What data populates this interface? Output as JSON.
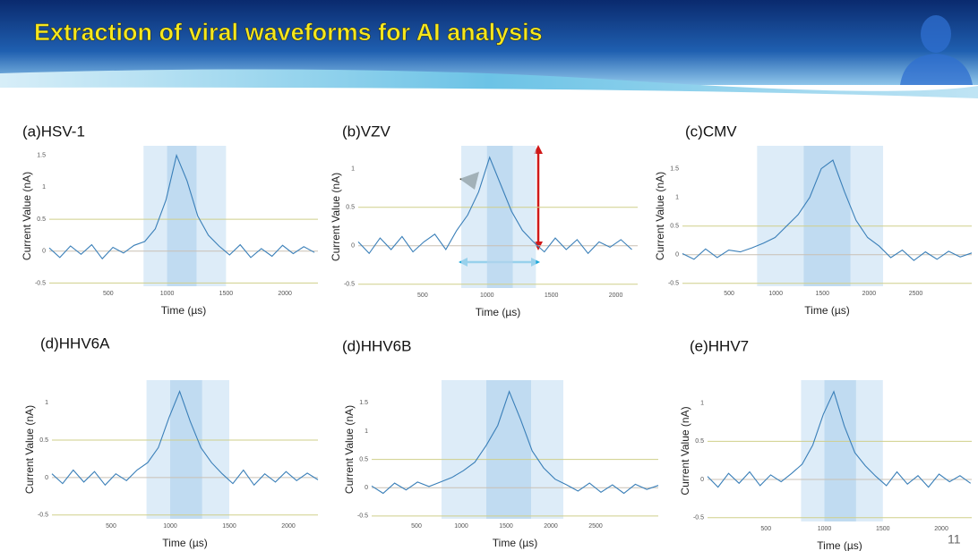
{
  "slide_title": "Extraction of viral waveforms for AI analysis",
  "page_number": "11",
  "chart_data": [
    {
      "type": "line",
      "title": "(a)HSV-1",
      "x_label": "Time (µs)",
      "y_label": "Current Value (nA)",
      "xlim": [
        0,
        2280
      ],
      "xticks": [
        500,
        1000,
        1500,
        2000
      ],
      "ylim": [
        -0.55,
        1.65
      ],
      "yticks": [
        -0.5,
        0,
        0.5,
        1,
        1.5
      ],
      "reference_lines": [
        -0.5,
        0,
        0.5
      ],
      "highlight_outer": [
        800,
        1500
      ],
      "highlight_inner": [
        1000,
        1250
      ],
      "color": "#3a7fb8",
      "x": [
        0,
        90,
        180,
        270,
        360,
        450,
        540,
        630,
        720,
        810,
        900,
        990,
        1080,
        1170,
        1260,
        1350,
        1440,
        1530,
        1620,
        1710,
        1800,
        1890,
        1980,
        2070,
        2160,
        2250
      ],
      "values": [
        0.05,
        -0.1,
        0.08,
        -0.05,
        0.1,
        -0.12,
        0.06,
        -0.03,
        0.09,
        0.15,
        0.35,
        0.8,
        1.5,
        1.1,
        0.55,
        0.25,
        0.08,
        -0.06,
        0.1,
        -0.1,
        0.04,
        -0.08,
        0.09,
        -0.04,
        0.07,
        -0.02
      ]
    },
    {
      "type": "line",
      "title": "(b)VZV",
      "x_label": "Time (µs)",
      "y_label": "Current Value (nA)",
      "xlim": [
        0,
        2170
      ],
      "xticks": [
        500,
        1000,
        1500,
        2000
      ],
      "ylim": [
        -0.55,
        1.3
      ],
      "yticks": [
        -0.5,
        0,
        0.5,
        1
      ],
      "reference_lines": [
        -0.5,
        0,
        0.5
      ],
      "highlight_outer": [
        800,
        1380
      ],
      "highlight_inner": [
        1000,
        1200
      ],
      "color": "#3a7fb8",
      "x": [
        0,
        85,
        170,
        255,
        340,
        425,
        510,
        595,
        680,
        765,
        850,
        935,
        1020,
        1105,
        1190,
        1275,
        1360,
        1445,
        1530,
        1615,
        1700,
        1785,
        1870,
        1955,
        2040,
        2125
      ],
      "values": [
        0.05,
        -0.1,
        0.1,
        -0.05,
        0.12,
        -0.08,
        0.05,
        0.15,
        -0.05,
        0.2,
        0.4,
        0.7,
        1.15,
        0.8,
        0.45,
        0.2,
        0.05,
        -0.08,
        0.1,
        -0.05,
        0.08,
        -0.1,
        0.05,
        -0.02,
        0.08,
        -0.05
      ]
    },
    {
      "type": "line",
      "title": "(c)CMV",
      "x_label": "Time (µs)",
      "y_label": "Current Value (nA)",
      "xlim": [
        0,
        3100
      ],
      "xticks": [
        500,
        1000,
        1500,
        2000,
        2500
      ],
      "ylim": [
        -0.55,
        1.9
      ],
      "yticks": [
        -0.5,
        0,
        0.5,
        1,
        1.5
      ],
      "reference_lines": [
        -0.5,
        0,
        0.5
      ],
      "highlight_outer": [
        800,
        2150
      ],
      "highlight_inner": [
        1300,
        1800
      ],
      "color": "#3a7fb8",
      "x": [
        0,
        124,
        248,
        372,
        496,
        620,
        744,
        868,
        992,
        1116,
        1240,
        1364,
        1488,
        1612,
        1736,
        1860,
        1984,
        2108,
        2232,
        2356,
        2480,
        2604,
        2728,
        2852,
        2976,
        3100
      ],
      "values": [
        0.02,
        -0.08,
        0.1,
        -0.05,
        0.08,
        0.05,
        0.12,
        0.2,
        0.3,
        0.5,
        0.7,
        1.0,
        1.5,
        1.65,
        1.1,
        0.6,
        0.3,
        0.15,
        -0.05,
        0.08,
        -0.1,
        0.05,
        -0.08,
        0.06,
        -0.04,
        0.03
      ]
    },
    {
      "type": "line",
      "title": "(d)HHV6A",
      "x_label": "Time (µs)",
      "y_label": "Current Value (nA)",
      "xlim": [
        0,
        2250
      ],
      "xticks": [
        500,
        1000,
        1500,
        2000
      ],
      "ylim": [
        -0.55,
        1.3
      ],
      "yticks": [
        -0.5,
        0,
        0.5,
        1
      ],
      "reference_lines": [
        -0.5,
        0,
        0.5
      ],
      "highlight_outer": [
        800,
        1500
      ],
      "highlight_inner": [
        1000,
        1270
      ],
      "color": "#3a7fb8",
      "x": [
        0,
        90,
        180,
        270,
        360,
        450,
        540,
        630,
        720,
        810,
        900,
        990,
        1080,
        1170,
        1260,
        1350,
        1440,
        1530,
        1620,
        1710,
        1800,
        1890,
        1980,
        2070,
        2160,
        2250
      ],
      "values": [
        0.05,
        -0.08,
        0.1,
        -0.06,
        0.08,
        -0.1,
        0.05,
        -0.04,
        0.1,
        0.2,
        0.4,
        0.8,
        1.15,
        0.75,
        0.4,
        0.2,
        0.05,
        -0.08,
        0.1,
        -0.1,
        0.05,
        -0.06,
        0.08,
        -0.04,
        0.06,
        -0.03
      ]
    },
    {
      "type": "line",
      "title": "(d)HHV6B",
      "x_label": "Time (µs)",
      "y_label": "Current Value (nA)",
      "xlim": [
        0,
        3200
      ],
      "xticks": [
        500,
        1000,
        1500,
        2000,
        2500
      ],
      "ylim": [
        -0.55,
        1.9
      ],
      "yticks": [
        -0.5,
        0,
        0.5,
        1,
        1.5
      ],
      "reference_lines": [
        -0.5,
        0,
        0.5
      ],
      "highlight_outer": [
        780,
        2140
      ],
      "highlight_inner": [
        1280,
        1780
      ],
      "color": "#3a7fb8",
      "x": [
        0,
        128,
        256,
        384,
        512,
        640,
        768,
        896,
        1024,
        1152,
        1280,
        1408,
        1536,
        1664,
        1792,
        1920,
        2048,
        2176,
        2304,
        2432,
        2560,
        2688,
        2816,
        2944,
        3072,
        3200
      ],
      "values": [
        0.03,
        -0.1,
        0.08,
        -0.04,
        0.1,
        0.02,
        0.1,
        0.18,
        0.3,
        0.45,
        0.75,
        1.1,
        1.7,
        1.2,
        0.65,
        0.35,
        0.15,
        0.05,
        -0.06,
        0.08,
        -0.08,
        0.05,
        -0.1,
        0.06,
        -0.03,
        0.04
      ]
    },
    {
      "type": "line",
      "title": "(e)HHV7",
      "x_label": "Time (µs)",
      "y_label": "Current Value (nA)",
      "xlim": [
        0,
        2260
      ],
      "xticks": [
        500,
        1000,
        1500,
        2000
      ],
      "ylim": [
        -0.55,
        1.3
      ],
      "yticks": [
        -0.5,
        0,
        0.5,
        1
      ],
      "reference_lines": [
        -0.5,
        0,
        0.5
      ],
      "highlight_outer": [
        800,
        1500
      ],
      "highlight_inner": [
        1000,
        1270
      ],
      "color": "#3a7fb8",
      "x": [
        0,
        90,
        180,
        270,
        360,
        450,
        540,
        630,
        720,
        810,
        900,
        990,
        1080,
        1170,
        1260,
        1350,
        1440,
        1530,
        1620,
        1710,
        1800,
        1890,
        1980,
        2070,
        2160,
        2250
      ],
      "values": [
        0.04,
        -0.1,
        0.08,
        -0.05,
        0.1,
        -0.08,
        0.06,
        -0.03,
        0.08,
        0.2,
        0.45,
        0.85,
        1.15,
        0.7,
        0.35,
        0.18,
        0.04,
        -0.08,
        0.1,
        -0.06,
        0.05,
        -0.1,
        0.07,
        -0.03,
        0.05,
        -0.05
      ]
    }
  ]
}
